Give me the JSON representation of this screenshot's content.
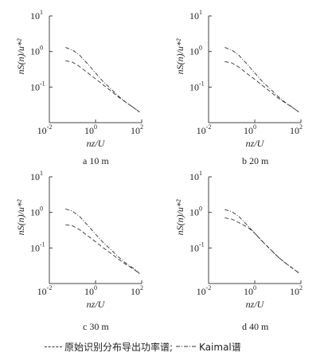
{
  "chart_data": [
    {
      "type": "line",
      "caption": "a 10 m",
      "xlabel": "nz/U",
      "ylabel": "nS(n)/u*²",
      "xscale": "log",
      "yscale": "log",
      "xlim": [
        0.01,
        100
      ],
      "ylim": [
        0.01,
        10
      ],
      "xticks": [
        "10",
        "10",
        "10"
      ],
      "xtick_exp": [
        "-2",
        "0",
        "2"
      ],
      "yticks": [
        "10",
        "10",
        "10"
      ],
      "ytick_exp": [
        "1",
        "0",
        "-1"
      ],
      "grid": false,
      "series": [
        {
          "name": "原始识别分布导出功率谱",
          "style": "dashed",
          "x": [
            0.05,
            0.1,
            0.2,
            0.5,
            1,
            2,
            5,
            10,
            20,
            50,
            80
          ],
          "y": [
            0.55,
            0.5,
            0.38,
            0.24,
            0.17,
            0.12,
            0.075,
            0.052,
            0.038,
            0.025,
            0.02
          ]
        },
        {
          "name": "Kaimal谱",
          "style": "dashdot",
          "x": [
            0.05,
            0.1,
            0.2,
            0.5,
            1,
            2,
            5,
            10,
            20,
            50,
            80
          ],
          "y": [
            1.3,
            1.1,
            0.8,
            0.42,
            0.25,
            0.15,
            0.085,
            0.055,
            0.038,
            0.025,
            0.02
          ]
        }
      ]
    },
    {
      "type": "line",
      "caption": "b 20 m",
      "xlabel": "nz/U",
      "ylabel": "nS(n)/u*²",
      "xscale": "log",
      "yscale": "log",
      "xlim": [
        0.01,
        100
      ],
      "ylim": [
        0.01,
        10
      ],
      "xticks": [
        "10",
        "10",
        "10"
      ],
      "xtick_exp": [
        "-2",
        "0",
        "2"
      ],
      "yticks": [
        "10",
        "10",
        "10"
      ],
      "ytick_exp": [
        "1",
        "0",
        "-1"
      ],
      "grid": false,
      "series": [
        {
          "name": "原始识别分布导出功率谱",
          "style": "dashed",
          "x": [
            0.05,
            0.1,
            0.2,
            0.5,
            1,
            2,
            5,
            10,
            20,
            50,
            80
          ],
          "y": [
            0.52,
            0.48,
            0.37,
            0.23,
            0.165,
            0.115,
            0.072,
            0.05,
            0.037,
            0.025,
            0.02
          ]
        },
        {
          "name": "Kaimal谱",
          "style": "dashdot",
          "x": [
            0.05,
            0.1,
            0.2,
            0.5,
            1,
            2,
            5,
            10,
            20,
            50,
            80
          ],
          "y": [
            1.3,
            1.1,
            0.8,
            0.42,
            0.25,
            0.15,
            0.085,
            0.055,
            0.038,
            0.025,
            0.02
          ]
        }
      ]
    },
    {
      "type": "line",
      "caption": "c 30 m",
      "xlabel": "nz/U",
      "ylabel": "nS(n)/u*²",
      "xscale": "log",
      "yscale": "log",
      "xlim": [
        0.01,
        100
      ],
      "ylim": [
        0.01,
        10
      ],
      "xticks": [
        "10",
        "10",
        "10"
      ],
      "xtick_exp": [
        "-2",
        "0",
        "2"
      ],
      "yticks": [
        "10",
        "10",
        "10"
      ],
      "ytick_exp": [
        "1",
        "0",
        "-1"
      ],
      "grid": false,
      "series": [
        {
          "name": "原始识别分布导出功率谱",
          "style": "dashed",
          "x": [
            0.05,
            0.1,
            0.2,
            0.5,
            1,
            2,
            5,
            10,
            20,
            50,
            80
          ],
          "y": [
            0.45,
            0.42,
            0.33,
            0.21,
            0.15,
            0.105,
            0.068,
            0.048,
            0.035,
            0.024,
            0.019
          ]
        },
        {
          "name": "Kaimal谱",
          "style": "dashdot",
          "x": [
            0.05,
            0.1,
            0.2,
            0.5,
            1,
            2,
            5,
            10,
            20,
            50,
            80
          ],
          "y": [
            1.25,
            1.08,
            0.78,
            0.41,
            0.245,
            0.15,
            0.085,
            0.055,
            0.038,
            0.025,
            0.019
          ]
        }
      ]
    },
    {
      "type": "line",
      "caption": "d 40 m",
      "xlabel": "nz/U",
      "ylabel": "nS(n)/u*²",
      "xscale": "log",
      "yscale": "log",
      "xlim": [
        0.01,
        100
      ],
      "ylim": [
        0.01,
        10
      ],
      "xticks": [
        "10",
        "10",
        "10"
      ],
      "xtick_exp": [
        "-2",
        "0",
        "2"
      ],
      "yticks": [
        "10",
        "10",
        "10"
      ],
      "ytick_exp": [
        "1",
        "0",
        "-1"
      ],
      "grid": false,
      "series": [
        {
          "name": "原始识别分布导出功率谱",
          "style": "dashed",
          "x": [
            0.05,
            0.1,
            0.2,
            0.5,
            1,
            2,
            5,
            10,
            20,
            50,
            80
          ],
          "y": [
            0.7,
            0.65,
            0.52,
            0.38,
            0.26,
            0.16,
            0.088,
            0.057,
            0.039,
            0.025,
            0.02
          ]
        },
        {
          "name": "Kaimal谱",
          "style": "dashdot",
          "x": [
            0.05,
            0.1,
            0.2,
            0.5,
            1,
            2,
            5,
            10,
            20,
            50,
            80
          ],
          "y": [
            1.2,
            1.05,
            0.78,
            0.42,
            0.26,
            0.16,
            0.088,
            0.056,
            0.039,
            0.025,
            0.02
          ]
        }
      ]
    }
  ],
  "legend": {
    "item1_label": "原始识别分布导出功率谱;",
    "item2_label": "Kaimal谱"
  }
}
